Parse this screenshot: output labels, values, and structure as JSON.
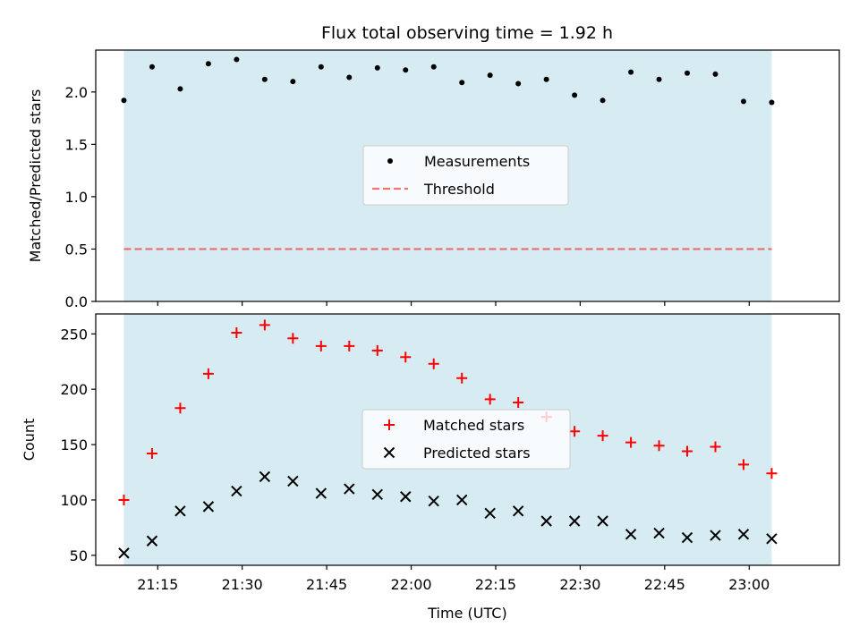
{
  "title": "Flux total observing time = 1.92 h",
  "colors": {
    "observing_span": "#add8e6",
    "threshold": "#ff0000",
    "measurements": "#000000",
    "matched": "#ff0000",
    "predicted": "#000000",
    "legend_bg": "#ffffff"
  },
  "chart_data": [
    {
      "type": "scatter",
      "ylabel": "Matched/Predicted stars",
      "xlim": [
        "21:04",
        "23:16"
      ],
      "ylim": [
        0,
        2.4
      ],
      "yticks": [
        "0.0",
        "0.5",
        "1.0",
        "1.5",
        "2.0"
      ],
      "shaded_span": [
        "21:09",
        "23:04"
      ],
      "legend": {
        "placement": "center",
        "entries": [
          "Measurements",
          "Threshold"
        ]
      },
      "threshold": {
        "name": "Threshold",
        "value": 0.5,
        "style": "dashed"
      },
      "series": [
        {
          "name": "Measurements",
          "marker": "dot",
          "x": [
            "21:09",
            "21:14",
            "21:19",
            "21:24",
            "21:29",
            "21:34",
            "21:39",
            "21:44",
            "21:49",
            "21:54",
            "21:59",
            "22:04",
            "22:09",
            "22:14",
            "22:19",
            "22:24",
            "22:29",
            "22:34",
            "22:39",
            "22:44",
            "22:49",
            "22:54",
            "22:59",
            "23:04"
          ],
          "y": [
            1.92,
            2.24,
            2.03,
            2.27,
            2.31,
            2.12,
            2.1,
            2.24,
            2.14,
            2.23,
            2.21,
            2.24,
            2.09,
            2.16,
            2.08,
            2.12,
            1.97,
            1.92,
            2.19,
            2.12,
            2.18,
            2.17,
            1.91,
            1.9
          ]
        }
      ]
    },
    {
      "type": "scatter",
      "xlabel": "Time (UTC)",
      "ylabel": "Count",
      "xlim": [
        "21:04",
        "23:16"
      ],
      "ylim": [
        41,
        268
      ],
      "yticks": [
        "50",
        "100",
        "150",
        "200",
        "250"
      ],
      "xticks": [
        "21:15",
        "21:30",
        "21:45",
        "22:00",
        "22:15",
        "22:30",
        "22:45",
        "23:00"
      ],
      "shaded_span": [
        "21:09",
        "23:04"
      ],
      "legend": {
        "placement": "center",
        "entries": [
          "Matched stars",
          "Predicted stars"
        ]
      },
      "series": [
        {
          "name": "Matched stars",
          "marker": "plus",
          "x": [
            "21:09",
            "21:14",
            "21:19",
            "21:24",
            "21:29",
            "21:34",
            "21:39",
            "21:44",
            "21:49",
            "21:54",
            "21:59",
            "22:04",
            "22:09",
            "22:14",
            "22:19",
            "22:24",
            "22:29",
            "22:34",
            "22:39",
            "22:44",
            "22:49",
            "22:54",
            "22:59",
            "23:04"
          ],
          "y": [
            100,
            142,
            183,
            214,
            251,
            258,
            246,
            239,
            239,
            235,
            229,
            223,
            210,
            191,
            188,
            175,
            162,
            158,
            152,
            149,
            144,
            148,
            132,
            124
          ]
        },
        {
          "name": "Predicted stars",
          "marker": "x",
          "x": [
            "21:09",
            "21:14",
            "21:19",
            "21:24",
            "21:29",
            "21:34",
            "21:39",
            "21:44",
            "21:49",
            "21:54",
            "21:59",
            "22:04",
            "22:09",
            "22:14",
            "22:19",
            "22:24",
            "22:29",
            "22:34",
            "22:39",
            "22:44",
            "22:49",
            "22:54",
            "22:59",
            "23:04"
          ],
          "y": [
            52,
            63,
            90,
            94,
            108,
            121,
            117,
            106,
            110,
            105,
            103,
            99,
            100,
            88,
            90,
            81,
            81,
            81,
            69,
            70,
            66,
            68,
            69,
            65
          ]
        }
      ]
    }
  ]
}
